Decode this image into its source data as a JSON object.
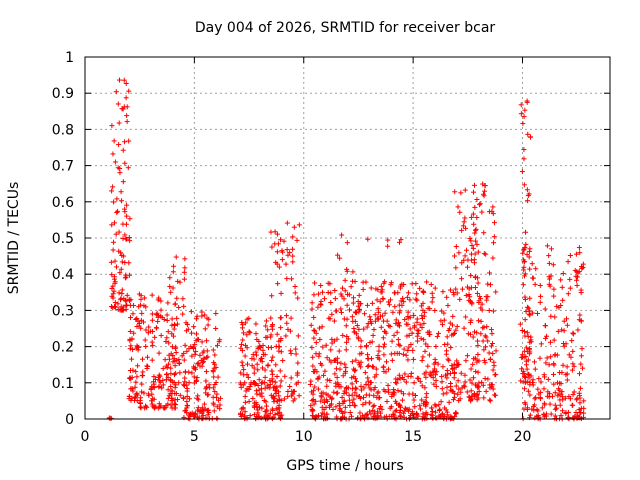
{
  "chart_data": {
    "type": "scatter",
    "title": "Day 004 of 2026, SRMTID for receiver bcar",
    "xlabel": "GPS time / hours",
    "ylabel": "SRMTID / TECUs",
    "xlim": [
      0,
      24
    ],
    "ylim": [
      0,
      1
    ],
    "xticks": [
      "0",
      "5",
      "10",
      "15",
      "20"
    ],
    "yticks": [
      "0",
      "0.1",
      "0.2",
      "0.3",
      "0.4",
      "0.5",
      "0.6",
      "0.7",
      "0.8",
      "0.9",
      "1"
    ],
    "grid": true,
    "marker": "+",
    "color": "#ff0000",
    "clusters": [
      {
        "x0": 1.1,
        "x1": 1.3,
        "n": 3,
        "base": 0.0,
        "spread": 0.005
      },
      {
        "x0": 1.2,
        "x1": 2.1,
        "n": 110,
        "base": 0.3,
        "spread": 0.65
      },
      {
        "x0": 2.0,
        "x1": 2.6,
        "n": 60,
        "base": 0.05,
        "spread": 0.3
      },
      {
        "x0": 2.5,
        "x1": 4.2,
        "n": 150,
        "base": 0.03,
        "spread": 0.32
      },
      {
        "x0": 3.8,
        "x1": 4.6,
        "n": 50,
        "base": 0.05,
        "spread": 0.4
      },
      {
        "x0": 4.5,
        "x1": 6.2,
        "n": 160,
        "base": 0.0,
        "spread": 0.3
      },
      {
        "x0": 7.1,
        "x1": 9.0,
        "n": 200,
        "base": 0.0,
        "spread": 0.28
      },
      {
        "x0": 8.5,
        "x1": 9.8,
        "n": 90,
        "base": 0.05,
        "spread": 0.5
      },
      {
        "x0": 10.3,
        "x1": 17.0,
        "n": 700,
        "base": 0.0,
        "spread": 0.38
      },
      {
        "x0": 11.5,
        "x1": 14.5,
        "n": 40,
        "base": 0.25,
        "spread": 0.27
      },
      {
        "x0": 16.8,
        "x1": 18.8,
        "n": 220,
        "base": 0.05,
        "spread": 0.6
      },
      {
        "x0": 19.9,
        "x1": 20.4,
        "n": 60,
        "base": 0.1,
        "spread": 0.78
      },
      {
        "x0": 20.0,
        "x1": 22.8,
        "n": 260,
        "base": 0.0,
        "spread": 0.48
      }
    ]
  }
}
